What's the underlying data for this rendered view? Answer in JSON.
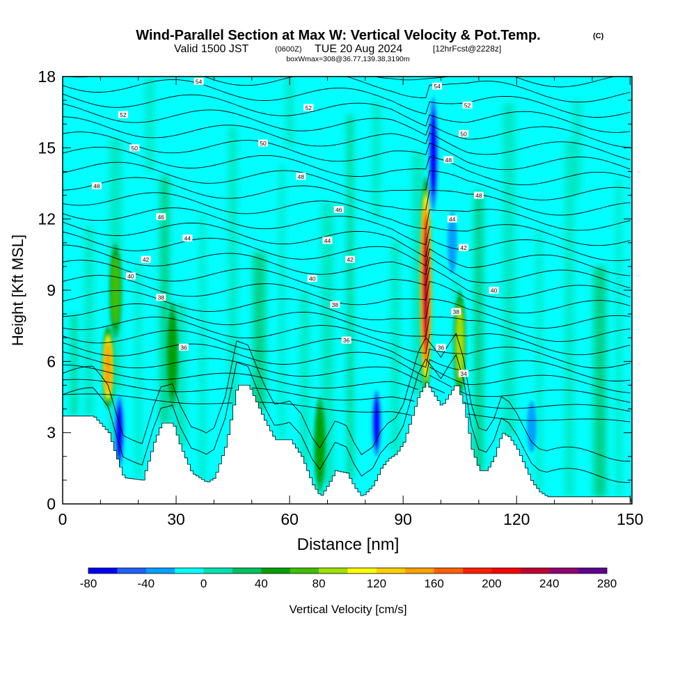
{
  "header": {
    "title": "Wind-Parallel Section at Max W: Vertical Velocity & Pot.Temp.",
    "title_mark": "(C)",
    "valid_prefix": "Valid 1500 JST",
    "valid_z": "(0600Z)",
    "valid_date": "TUE 20 Aug 2024",
    "forecast": "[12hrFcst@2228z]",
    "box_info": "boxWmax=308@36.77,139.38,3190m"
  },
  "chart_data": {
    "type": "heatmap",
    "xlabel": "Distance [nm]",
    "ylabel": "Height [Kft MSL]",
    "xlim": [
      0,
      150.5
    ],
    "ylim": [
      0,
      18
    ],
    "x_ticks": [
      0,
      30,
      60,
      90,
      120,
      150
    ],
    "y_ticks": [
      0,
      3,
      6,
      9,
      12,
      15,
      18
    ],
    "colorbar": {
      "label": "Vertical Velocity [cm/s]",
      "min": -80,
      "step": 20,
      "tick_labels": [
        -80,
        -40,
        0,
        40,
        80,
        120,
        160,
        200,
        240,
        280
      ],
      "colors": [
        "#0000ff",
        "#2060ff",
        "#00a0ff",
        "#00ffff",
        "#00e0b0",
        "#00c060",
        "#00a000",
        "#40c000",
        "#a0e000",
        "#ffff00",
        "#ffd000",
        "#ffa000",
        "#ff6000",
        "#ff2000",
        "#ff0000",
        "#c00030",
        "#900070",
        "#600090"
      ]
    },
    "terrain_height_kft": [
      [
        0,
        3.7
      ],
      [
        8,
        3.7
      ],
      [
        12,
        3.0
      ],
      [
        14,
        2.0
      ],
      [
        16,
        1.1
      ],
      [
        21,
        1.0
      ],
      [
        24,
        2.6
      ],
      [
        26,
        3.4
      ],
      [
        29,
        3.4
      ],
      [
        31,
        2.4
      ],
      [
        34,
        1.3
      ],
      [
        38,
        0.9
      ],
      [
        40,
        1.1
      ],
      [
        43,
        2.5
      ],
      [
        46,
        5.0
      ],
      [
        49,
        5.0
      ],
      [
        51,
        4.3
      ],
      [
        53,
        3.6
      ],
      [
        56,
        2.7
      ],
      [
        60,
        2.7
      ],
      [
        63,
        2.0
      ],
      [
        66,
        0.8
      ],
      [
        68,
        0.3
      ],
      [
        70,
        0.8
      ],
      [
        72,
        1.4
      ],
      [
        75,
        1.3
      ],
      [
        77,
        0.7
      ],
      [
        79,
        0.3
      ],
      [
        82,
        0.8
      ],
      [
        84,
        1.5
      ],
      [
        86,
        1.9
      ],
      [
        88,
        2.1
      ],
      [
        90,
        2.6
      ],
      [
        92,
        3.6
      ],
      [
        94,
        4.6
      ],
      [
        96,
        5.1
      ],
      [
        98,
        4.6
      ],
      [
        100,
        4.1
      ],
      [
        102,
        4.6
      ],
      [
        104,
        5.1
      ],
      [
        106,
        4.1
      ],
      [
        108,
        2.3
      ],
      [
        110,
        1.4
      ],
      [
        112,
        1.4
      ],
      [
        114,
        2.0
      ],
      [
        116,
        3.0
      ],
      [
        118,
        2.8
      ],
      [
        120,
        2.3
      ],
      [
        122,
        1.6
      ],
      [
        124,
        0.9
      ],
      [
        126,
        0.5
      ],
      [
        128,
        0.3
      ],
      [
        150.5,
        0.3
      ]
    ],
    "theta_contour_labels": [
      {
        "value": "54",
        "x": 36,
        "y": 17.8
      },
      {
        "value": "54",
        "x": 99,
        "y": 17.6
      },
      {
        "value": "52",
        "x": 16,
        "y": 16.4
      },
      {
        "value": "52",
        "x": 65,
        "y": 16.7
      },
      {
        "value": "52",
        "x": 107,
        "y": 16.8
      },
      {
        "value": "50",
        "x": 19,
        "y": 15.0
      },
      {
        "value": "50",
        "x": 53,
        "y": 15.2
      },
      {
        "value": "50",
        "x": 106,
        "y": 15.6
      },
      {
        "value": "48",
        "x": 9,
        "y": 13.4
      },
      {
        "value": "48",
        "x": 63,
        "y": 13.8
      },
      {
        "value": "48",
        "x": 102,
        "y": 14.5
      },
      {
        "value": "48",
        "x": 110,
        "y": 13.0
      },
      {
        "value": "46",
        "x": 26,
        "y": 12.1
      },
      {
        "value": "46",
        "x": 73,
        "y": 12.4
      },
      {
        "value": "44",
        "x": 33,
        "y": 11.2
      },
      {
        "value": "44",
        "x": 70,
        "y": 11.1
      },
      {
        "value": "44",
        "x": 103,
        "y": 12.0
      },
      {
        "value": "42",
        "x": 22,
        "y": 10.3
      },
      {
        "value": "42",
        "x": 76,
        "y": 10.3
      },
      {
        "value": "42",
        "x": 106,
        "y": 10.8
      },
      {
        "value": "40",
        "x": 18,
        "y": 9.6
      },
      {
        "value": "40",
        "x": 66,
        "y": 9.5
      },
      {
        "value": "40",
        "x": 114,
        "y": 9.0
      },
      {
        "value": "38",
        "x": 26,
        "y": 8.7
      },
      {
        "value": "38",
        "x": 72,
        "y": 8.4
      },
      {
        "value": "38",
        "x": 104,
        "y": 8.1
      },
      {
        "value": "36",
        "x": 32,
        "y": 6.6
      },
      {
        "value": "36",
        "x": 75,
        "y": 6.9
      },
      {
        "value": "36",
        "x": 100,
        "y": 6.6
      },
      {
        "value": "34",
        "x": 106,
        "y": 5.5
      }
    ],
    "updraft_cores": [
      {
        "x": 96,
        "ybot": 4.5,
        "ytop": 13.8,
        "peak_cms": 230
      },
      {
        "x": 12,
        "ybot": 4.0,
        "ytop": 7.5,
        "peak_cms": 140
      },
      {
        "x": 105,
        "ybot": 4.5,
        "ytop": 9.0,
        "peak_cms": 90
      },
      {
        "x": 14,
        "ybot": 7.0,
        "ytop": 11.0,
        "peak_cms": 60
      },
      {
        "x": 29,
        "ybot": 4.0,
        "ytop": 8.5,
        "peak_cms": 50
      },
      {
        "x": 68,
        "ybot": 0.5,
        "ytop": 4.5,
        "peak_cms": 50
      }
    ],
    "downdraft_cores": [
      {
        "x": 98,
        "ybot": 12.0,
        "ytop": 17.5,
        "peak_cms": -80
      },
      {
        "x": 83,
        "ybot": 1.8,
        "ytop": 5.0,
        "peak_cms": -80
      },
      {
        "x": 15,
        "ybot": 1.3,
        "ytop": 4.8,
        "peak_cms": -80
      },
      {
        "x": 103,
        "ybot": 9.5,
        "ytop": 12.5,
        "peak_cms": -50
      },
      {
        "x": 124,
        "ybot": 2.0,
        "ytop": 4.5,
        "peak_cms": -40
      }
    ]
  }
}
